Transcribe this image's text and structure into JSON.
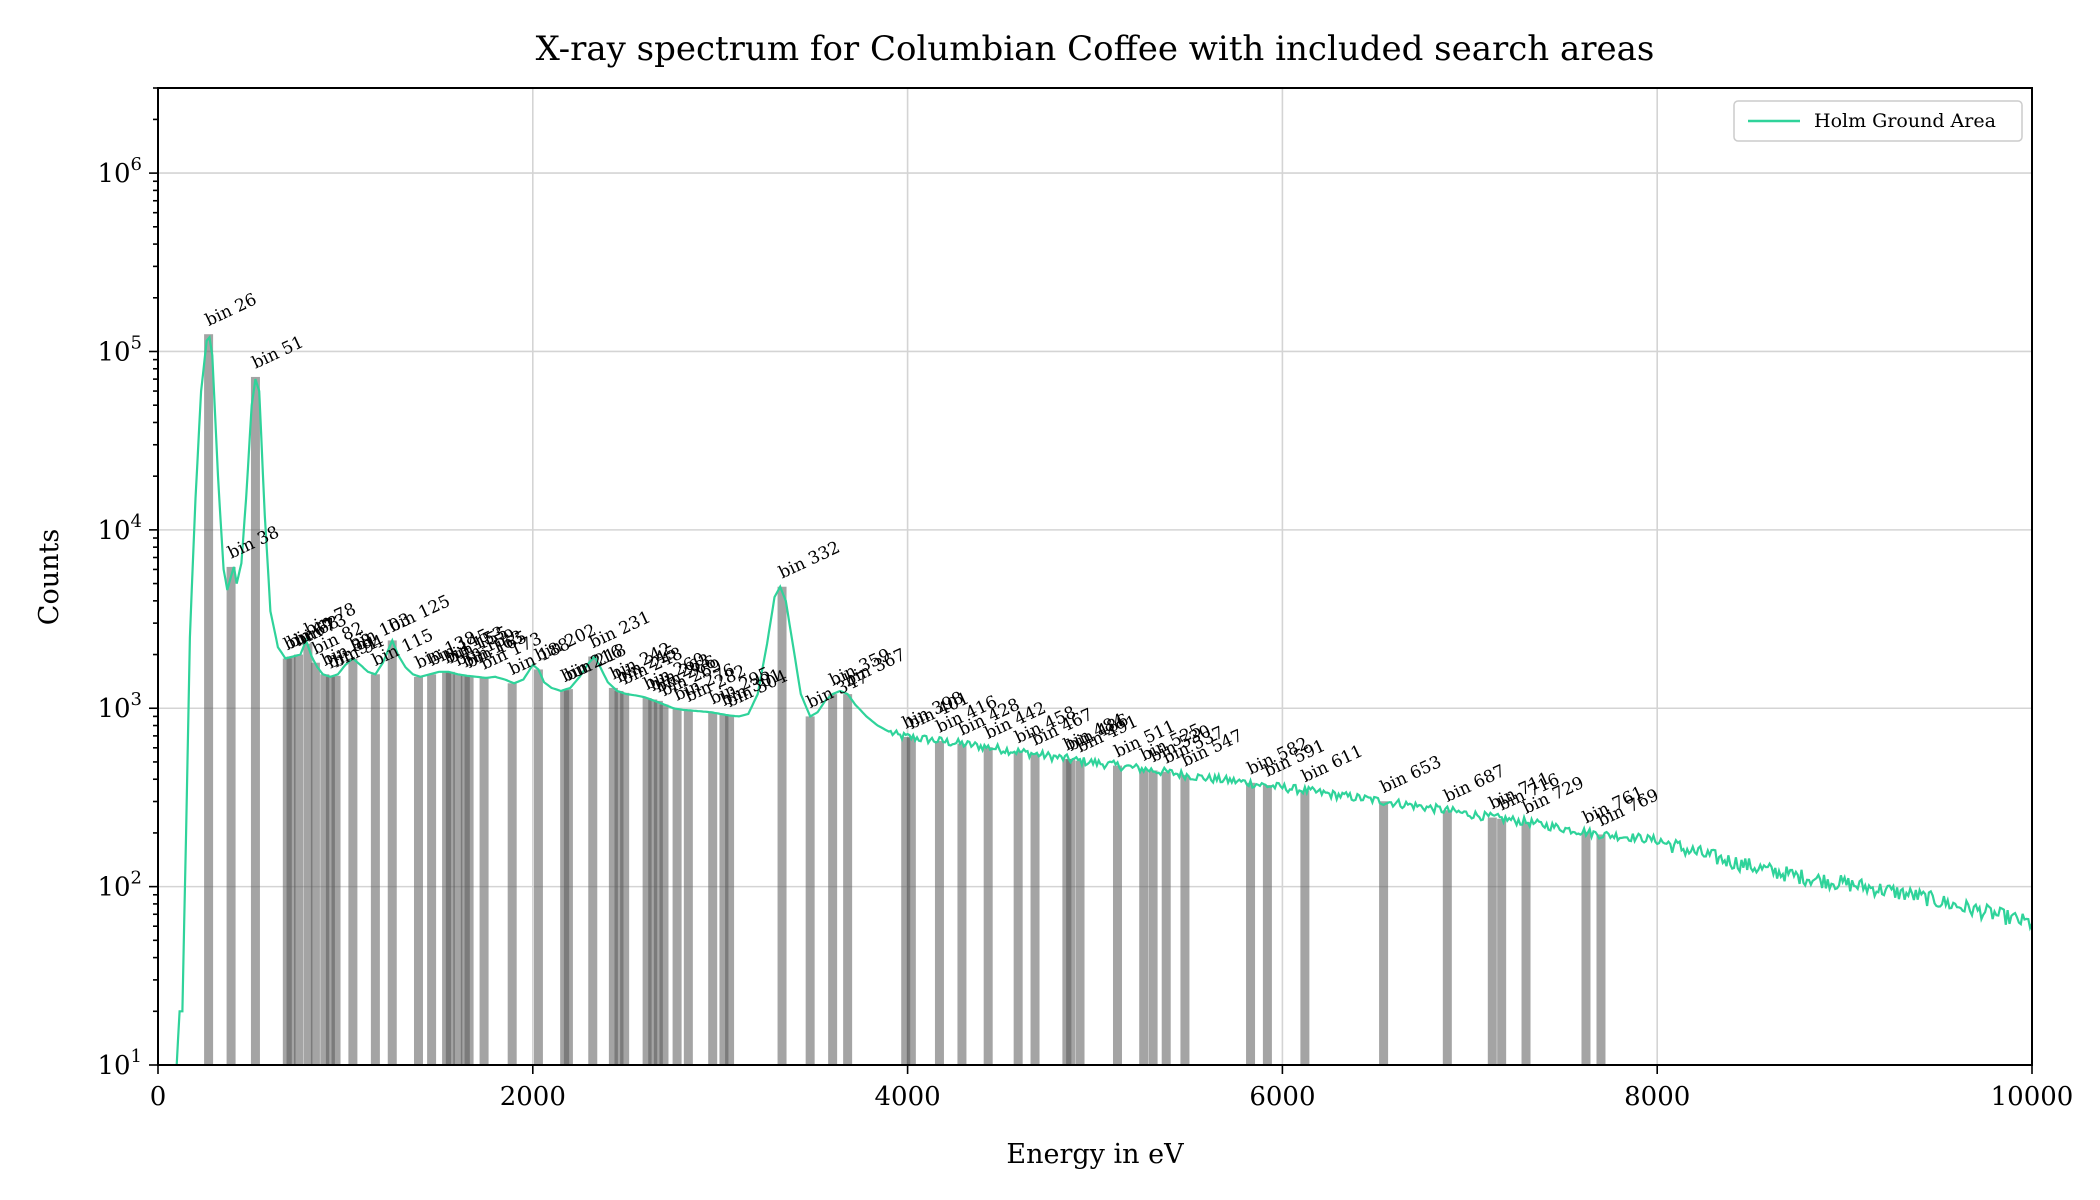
{
  "chart_data": {
    "type": "line",
    "title": "X-ray spectrum for Columbian Coffee with included search areas",
    "xlabel": "Energy in eV",
    "ylabel": "Counts",
    "x_scale": "linear",
    "y_scale": "log",
    "xlim": [
      0,
      10000
    ],
    "ylim": [
      10,
      3000000
    ],
    "x_ticks": [
      0,
      2000,
      4000,
      6000,
      8000,
      10000
    ],
    "x_tick_labels": [
      "0",
      "2000",
      "4000",
      "6000",
      "8000",
      "10000"
    ],
    "y_ticks": [
      10,
      100,
      1000,
      10000,
      100000,
      1000000
    ],
    "y_tick_labels": [
      {
        "base": "10",
        "exp": "1"
      },
      {
        "base": "10",
        "exp": "2"
      },
      {
        "base": "10",
        "exp": "3"
      },
      {
        "base": "10",
        "exp": "4"
      },
      {
        "base": "10",
        "exp": "5"
      },
      {
        "base": "10",
        "exp": "6"
      }
    ],
    "grid": true,
    "legend": {
      "position": "top-right",
      "entries": [
        {
          "name": "Holm Ground Area",
          "color": "#2fd39a"
        }
      ]
    },
    "series": [
      {
        "name": "Holm Ground Area",
        "color": "#2fd39a",
        "points": [
          [
            100,
            10
          ],
          [
            115,
            20
          ],
          [
            130,
            20
          ],
          [
            150,
            200
          ],
          [
            170,
            2500
          ],
          [
            200,
            15000
          ],
          [
            230,
            60000
          ],
          [
            260,
            115000
          ],
          [
            275,
            120000
          ],
          [
            290,
            95000
          ],
          [
            320,
            20000
          ],
          [
            350,
            6000
          ],
          [
            370,
            4600
          ],
          [
            390,
            5500
          ],
          [
            405,
            6200
          ],
          [
            420,
            5000
          ],
          [
            445,
            6500
          ],
          [
            470,
            15000
          ],
          [
            500,
            50000
          ],
          [
            520,
            70000
          ],
          [
            540,
            60000
          ],
          [
            570,
            12000
          ],
          [
            600,
            3500
          ],
          [
            640,
            2200
          ],
          [
            680,
            1900
          ],
          [
            720,
            1950
          ],
          [
            760,
            2000
          ],
          [
            790,
            2400
          ],
          [
            820,
            1950
          ],
          [
            850,
            1700
          ],
          [
            880,
            1550
          ],
          [
            920,
            1500
          ],
          [
            960,
            1550
          ],
          [
            1000,
            1750
          ],
          [
            1040,
            1900
          ],
          [
            1080,
            1750
          ],
          [
            1120,
            1600
          ],
          [
            1160,
            1550
          ],
          [
            1200,
            1800
          ],
          [
            1250,
            2400
          ],
          [
            1280,
            2000
          ],
          [
            1320,
            1700
          ],
          [
            1360,
            1550
          ],
          [
            1400,
            1500
          ],
          [
            1450,
            1550
          ],
          [
            1500,
            1600
          ],
          [
            1550,
            1600
          ],
          [
            1600,
            1550
          ],
          [
            1650,
            1520
          ],
          [
            1700,
            1500
          ],
          [
            1750,
            1480
          ],
          [
            1800,
            1500
          ],
          [
            1850,
            1450
          ],
          [
            1900,
            1380
          ],
          [
            1950,
            1450
          ],
          [
            2000,
            1750
          ],
          [
            2030,
            1650
          ],
          [
            2060,
            1400
          ],
          [
            2100,
            1300
          ],
          [
            2150,
            1250
          ],
          [
            2200,
            1300
          ],
          [
            2250,
            1500
          ],
          [
            2300,
            1800
          ],
          [
            2330,
            1950
          ],
          [
            2360,
            1700
          ],
          [
            2400,
            1400
          ],
          [
            2450,
            1250
          ],
          [
            2500,
            1200
          ],
          [
            2550,
            1180
          ],
          [
            2600,
            1150
          ],
          [
            2650,
            1100
          ],
          [
            2700,
            1050
          ],
          [
            2750,
            1000
          ],
          [
            2800,
            980
          ],
          [
            2850,
            970
          ],
          [
            2900,
            960
          ],
          [
            2950,
            950
          ],
          [
            3000,
            930
          ],
          [
            3050,
            910
          ],
          [
            3100,
            900
          ],
          [
            3150,
            930
          ],
          [
            3200,
            1200
          ],
          [
            3250,
            2300
          ],
          [
            3290,
            4200
          ],
          [
            3320,
            4800
          ],
          [
            3350,
            4000
          ],
          [
            3390,
            2200
          ],
          [
            3430,
            1200
          ],
          [
            3480,
            900
          ],
          [
            3520,
            950
          ],
          [
            3560,
            1100
          ],
          [
            3600,
            1200
          ],
          [
            3640,
            1250
          ],
          [
            3680,
            1200
          ],
          [
            3720,
            1050
          ],
          [
            3780,
            900
          ],
          [
            3840,
            800
          ],
          [
            3900,
            740
          ],
          [
            3950,
            700
          ],
          [
            4000,
            690
          ],
          [
            4100,
            670
          ],
          [
            4200,
            650
          ],
          [
            4300,
            630
          ],
          [
            4400,
            610
          ],
          [
            4500,
            590
          ],
          [
            4600,
            570
          ],
          [
            4700,
            550
          ],
          [
            4800,
            530
          ],
          [
            4900,
            510
          ],
          [
            5000,
            495
          ],
          [
            5100,
            480
          ],
          [
            5200,
            465
          ],
          [
            5300,
            450
          ],
          [
            5400,
            435
          ],
          [
            5500,
            420
          ],
          [
            5600,
            405
          ],
          [
            5700,
            395
          ],
          [
            5800,
            385
          ],
          [
            5900,
            370
          ],
          [
            6000,
            360
          ],
          [
            6100,
            348
          ],
          [
            6200,
            336
          ],
          [
            6300,
            325
          ],
          [
            6400,
            315
          ],
          [
            6500,
            305
          ],
          [
            6600,
            295
          ],
          [
            6700,
            285
          ],
          [
            6800,
            275
          ],
          [
            6900,
            265
          ],
          [
            7000,
            255
          ],
          [
            7100,
            246
          ],
          [
            7200,
            238
          ],
          [
            7300,
            230
          ],
          [
            7400,
            221
          ],
          [
            7500,
            212
          ],
          [
            7600,
            204
          ],
          [
            7700,
            196
          ],
          [
            7800,
            192
          ],
          [
            7900,
            188
          ],
          [
            8000,
            182
          ],
          [
            8100,
            168
          ],
          [
            8200,
            156
          ],
          [
            8300,
            146
          ],
          [
            8400,
            138
          ],
          [
            8500,
            130
          ],
          [
            8600,
            123
          ],
          [
            8700,
            117
          ],
          [
            8800,
            112
          ],
          [
            8900,
            108
          ],
          [
            9000,
            104
          ],
          [
            9100,
            100
          ],
          [
            9200,
            96
          ],
          [
            9300,
            92
          ],
          [
            9400,
            88
          ],
          [
            9500,
            83
          ],
          [
            9600,
            78
          ],
          [
            9700,
            74
          ],
          [
            9800,
            70
          ],
          [
            9900,
            66
          ],
          [
            10000,
            62
          ]
        ]
      }
    ],
    "search_bins": [
      {
        "label": "bin 26",
        "energy": 270,
        "counts": 125000
      },
      {
        "label": "bin 38",
        "energy": 390,
        "counts": 6200
      },
      {
        "label": "bin 51",
        "energy": 520,
        "counts": 72000
      },
      {
        "label": "bin 67",
        "energy": 690,
        "counts": 1900
      },
      {
        "label": "bin 68",
        "energy": 710,
        "counts": 1950
      },
      {
        "label": "bin 73",
        "energy": 750,
        "counts": 2000
      },
      {
        "label": "bin 78",
        "energy": 800,
        "counts": 2300
      },
      {
        "label": "bin 82",
        "energy": 840,
        "counts": 1800
      },
      {
        "label": "bin 88",
        "energy": 890,
        "counts": 1550
      },
      {
        "label": "bin 91",
        "energy": 920,
        "counts": 1500
      },
      {
        "label": "bin 94",
        "energy": 950,
        "counts": 1520
      },
      {
        "label": "bin 103",
        "energy": 1040,
        "counts": 1900
      },
      {
        "label": "bin 115",
        "energy": 1160,
        "counts": 1550
      },
      {
        "label": "bin 125",
        "energy": 1250,
        "counts": 2400
      },
      {
        "label": "bin 138",
        "energy": 1390,
        "counts": 1500
      },
      {
        "label": "bin 145",
        "energy": 1460,
        "counts": 1550
      },
      {
        "label": "bin 153",
        "energy": 1540,
        "counts": 1600
      },
      {
        "label": "bin 155",
        "energy": 1560,
        "counts": 1600
      },
      {
        "label": "bin 159",
        "energy": 1600,
        "counts": 1550
      },
      {
        "label": "bin 163",
        "energy": 1640,
        "counts": 1520
      },
      {
        "label": "bin 165",
        "energy": 1660,
        "counts": 1510
      },
      {
        "label": "bin 173",
        "energy": 1740,
        "counts": 1480
      },
      {
        "label": "bin 188",
        "energy": 1890,
        "counts": 1380
      },
      {
        "label": "bin 202",
        "energy": 2030,
        "counts": 1650
      },
      {
        "label": "bin 216",
        "energy": 2170,
        "counts": 1260
      },
      {
        "label": "bin 218",
        "energy": 2190,
        "counts": 1280
      },
      {
        "label": "bin 231",
        "energy": 2320,
        "counts": 1950
      },
      {
        "label": "bin 242",
        "energy": 2430,
        "counts": 1300
      },
      {
        "label": "bin 245",
        "energy": 2460,
        "counts": 1250
      },
      {
        "label": "bin 248",
        "energy": 2490,
        "counts": 1220
      },
      {
        "label": "bin 260",
        "energy": 2610,
        "counts": 1140
      },
      {
        "label": "bin 263",
        "energy": 2640,
        "counts": 1120
      },
      {
        "label": "bin 266",
        "energy": 2670,
        "counts": 1100
      },
      {
        "label": "bin 269",
        "energy": 2700,
        "counts": 1050
      },
      {
        "label": "bin 276",
        "energy": 2770,
        "counts": 990
      },
      {
        "label": "bin 282",
        "energy": 2830,
        "counts": 975
      },
      {
        "label": "bin 295",
        "energy": 2960,
        "counts": 945
      },
      {
        "label": "bin 301",
        "energy": 3020,
        "counts": 925
      },
      {
        "label": "bin 304",
        "energy": 3050,
        "counts": 910
      },
      {
        "label": "bin 332",
        "energy": 3330,
        "counts": 4800
      },
      {
        "label": "bin 347",
        "energy": 3480,
        "counts": 900
      },
      {
        "label": "bin 359",
        "energy": 3600,
        "counts": 1200
      },
      {
        "label": "bin 367",
        "energy": 3680,
        "counts": 1200
      },
      {
        "label": "bin 398",
        "energy": 3990,
        "counts": 690
      },
      {
        "label": "bin 401",
        "energy": 4020,
        "counts": 685
      },
      {
        "label": "bin 416",
        "energy": 4170,
        "counts": 655
      },
      {
        "label": "bin 428",
        "energy": 4290,
        "counts": 632
      },
      {
        "label": "bin 442",
        "energy": 4430,
        "counts": 605
      },
      {
        "label": "bin 458",
        "energy": 4590,
        "counts": 572
      },
      {
        "label": "bin 467",
        "energy": 4680,
        "counts": 555
      },
      {
        "label": "bin 484",
        "energy": 4850,
        "counts": 520
      },
      {
        "label": "bin 486",
        "energy": 4870,
        "counts": 517
      },
      {
        "label": "bin 491",
        "energy": 4920,
        "counts": 508
      },
      {
        "label": "bin 511",
        "energy": 5120,
        "counts": 477
      },
      {
        "label": "bin 525",
        "energy": 5260,
        "counts": 456
      },
      {
        "label": "bin 530",
        "energy": 5310,
        "counts": 448
      },
      {
        "label": "bin 537",
        "energy": 5380,
        "counts": 440
      },
      {
        "label": "bin 547",
        "energy": 5480,
        "counts": 423
      },
      {
        "label": "bin 582",
        "energy": 5830,
        "counts": 382
      },
      {
        "label": "bin 591",
        "energy": 5920,
        "counts": 371
      },
      {
        "label": "bin 611",
        "energy": 6120,
        "counts": 346
      },
      {
        "label": "bin 653",
        "energy": 6540,
        "counts": 301
      },
      {
        "label": "bin 687",
        "energy": 6880,
        "counts": 268
      },
      {
        "label": "bin 711",
        "energy": 7120,
        "counts": 244
      },
      {
        "label": "bin 716",
        "energy": 7170,
        "counts": 240
      },
      {
        "label": "bin 729",
        "energy": 7300,
        "counts": 230
      },
      {
        "label": "bin 761",
        "energy": 7620,
        "counts": 203
      },
      {
        "label": "bin 769",
        "energy": 7700,
        "counts": 196
      }
    ]
  }
}
